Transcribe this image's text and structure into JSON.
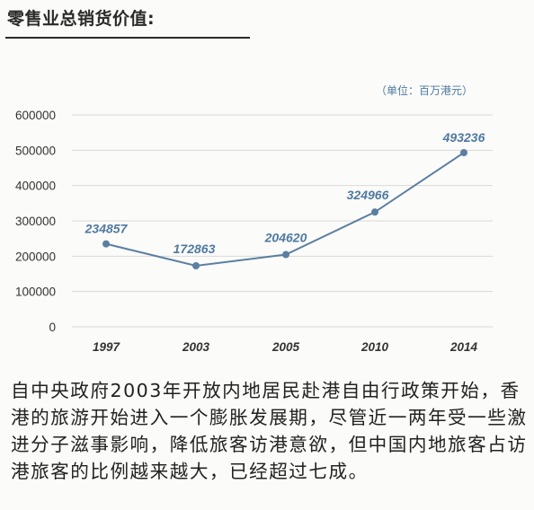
{
  "header": {
    "title": "零售业总销货价值:",
    "unit_note": "（单位：百万港元）"
  },
  "chart_data": {
    "type": "line",
    "title": "零售业总销货价值:",
    "categories": [
      "1997",
      "2003",
      "2005",
      "2010",
      "2014"
    ],
    "series": [
      {
        "values": [
          234857,
          172863,
          204620,
          324966,
          493236
        ]
      }
    ],
    "data_labels": [
      "234857",
      "172863",
      "204620",
      "324966",
      "493236"
    ],
    "ylim": [
      0,
      600000
    ],
    "yticks": [
      0,
      100000,
      200000,
      300000,
      400000,
      500000,
      600000
    ],
    "ytick_labels": [
      "0",
      "100000",
      "200000",
      "300000",
      "400000",
      "500000",
      "600000"
    ],
    "grid": true,
    "line_color": "#5b7fa1",
    "label_color": "#4f7aa0"
  },
  "caption": {
    "text": "自中央政府2003年开放内地居民赴港自由行政策开始，香港的旅游开始进入一个膨胀发展期，尽管近一两年受一些激进分子滋事影响，降低旅客访港意欲，但中国内地旅客占访港旅客的比例越来越大，已经超过七成。"
  }
}
